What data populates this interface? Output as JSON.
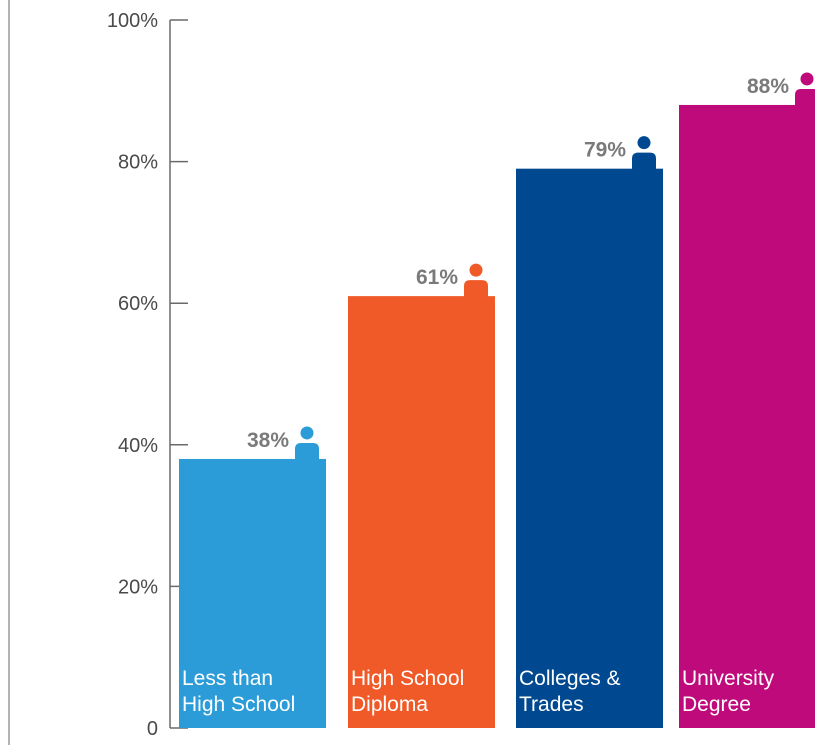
{
  "chart_data": {
    "type": "bar",
    "title": "",
    "xlabel": "",
    "ylabel": "",
    "ylim": [
      0,
      100
    ],
    "y_ticks": [
      {
        "value": 0,
        "label": "0"
      },
      {
        "value": 20,
        "label": "20%"
      },
      {
        "value": 40,
        "label": "40%"
      },
      {
        "value": 60,
        "label": "60%"
      },
      {
        "value": 80,
        "label": "80%"
      },
      {
        "value": 100,
        "label": "100%"
      }
    ],
    "grid": false,
    "legend": "none",
    "bars": [
      {
        "category_lines": [
          "Less than",
          "High School"
        ],
        "value": 38,
        "value_label": "38%",
        "color": "#2b9cd8",
        "icon": "person-icon"
      },
      {
        "category_lines": [
          "High School",
          "Diploma"
        ],
        "value": 61,
        "value_label": "61%",
        "color": "#f05a28",
        "icon": "person-icon"
      },
      {
        "category_lines": [
          "Colleges &",
          "Trades"
        ],
        "value": 79,
        "value_label": "79%",
        "color": "#004990",
        "icon": "person-icon"
      },
      {
        "category_lines": [
          "University",
          "Degree"
        ],
        "value": 88,
        "value_label": "88%",
        "color": "#bf0a7c",
        "icon": "person-icon"
      }
    ]
  }
}
